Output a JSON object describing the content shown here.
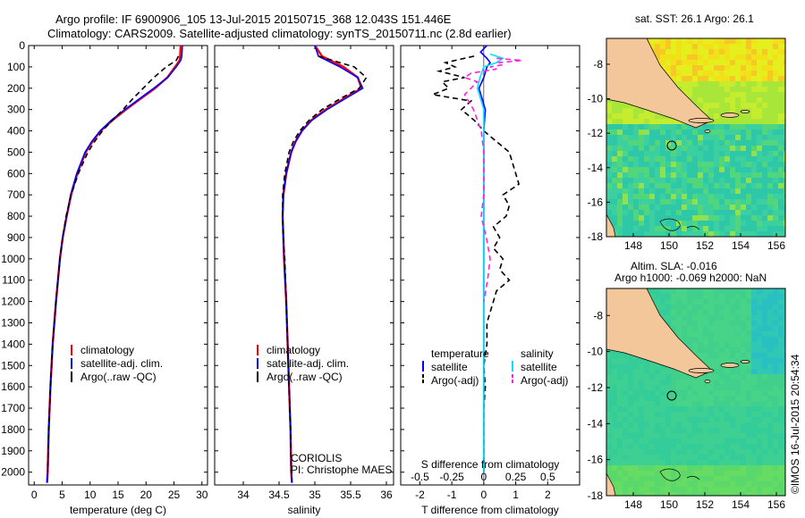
{
  "header": {
    "line1": "Argo profile: IF 6900906_105 13-Jul-2015 20150715_368 12.043S 151.446E",
    "line2": "Climatology: CARS2009. Satellite-adjusted climatology: synTS_20150711.nc (2.8d earlier)"
  },
  "colors": {
    "climatology": "#ff0000",
    "satellite": "#0000ff",
    "argo": "#000000",
    "satellite_s": "#00e5ff",
    "argo_s": "#ff22dd",
    "land": "#f4c79a"
  },
  "depth_axis": {
    "ticks": [
      0,
      100,
      200,
      300,
      400,
      500,
      600,
      700,
      800,
      900,
      1000,
      1100,
      1200,
      1300,
      1400,
      1500,
      1600,
      1700,
      1800,
      1900,
      2000
    ],
    "range": [
      0,
      2060
    ]
  },
  "chart_data": [
    {
      "type": "line",
      "xlabel": "temperature (deg C)",
      "xlim": [
        -1,
        31
      ],
      "xticks": [
        0,
        5,
        10,
        15,
        20,
        25,
        30
      ],
      "legend": [
        "climatology",
        "satellite-adj. clim.",
        "Argo(..raw -QC)"
      ],
      "depth": [
        0,
        50,
        70,
        100,
        150,
        200,
        250,
        300,
        350,
        400,
        450,
        500,
        600,
        700,
        800,
        900,
        1000,
        1200,
        1400,
        1600,
        1800,
        2000,
        2050
      ],
      "series": [
        {
          "name": "climatology",
          "values": [
            26.2,
            26.1,
            26.0,
            25.2,
            23.8,
            21.6,
            19.0,
            16.4,
            14.0,
            11.9,
            10.4,
            9.2,
            7.7,
            6.6,
            5.8,
            5.1,
            4.6,
            3.9,
            3.3,
            2.9,
            2.6,
            2.4,
            2.3
          ]
        },
        {
          "name": "satellite-adj. clim.",
          "values": [
            26.5,
            26.4,
            26.2,
            25.4,
            23.9,
            21.4,
            18.8,
            16.2,
            13.8,
            11.8,
            10.3,
            9.1,
            7.6,
            6.5,
            5.8,
            5.1,
            4.6,
            3.9,
            3.3,
            2.9,
            2.6,
            2.4,
            2.3
          ]
        },
        {
          "name": "Argo(..raw -QC)",
          "values": [
            null,
            25.8,
            25.4,
            23.6,
            21.4,
            19.5,
            17.6,
            15.9,
            14.0,
            12.2,
            10.8,
            9.6,
            7.9,
            6.6,
            5.7,
            5.1,
            4.6,
            3.9,
            3.3,
            2.9,
            2.6,
            2.4,
            null
          ]
        }
      ]
    },
    {
      "type": "line",
      "xlabel": "salinity",
      "xlim": [
        33.6,
        36.1
      ],
      "xticks": [
        34,
        34.5,
        35,
        35.5,
        36
      ],
      "legend": [
        "climatology",
        "satellite-adj. clim.",
        "Argo(..raw -QC)"
      ],
      "depth": [
        0,
        50,
        100,
        150,
        200,
        250,
        300,
        350,
        400,
        450,
        500,
        600,
        700,
        800,
        900,
        1000,
        1200,
        1400,
        1600,
        1800,
        2000,
        2050
      ],
      "series": [
        {
          "name": "climatology",
          "values": [
            35.0,
            35.1,
            35.4,
            35.6,
            35.65,
            35.4,
            35.15,
            34.95,
            34.82,
            34.73,
            34.67,
            34.6,
            34.56,
            34.55,
            34.56,
            34.57,
            34.6,
            34.62,
            34.64,
            34.66,
            34.67,
            34.68
          ]
        },
        {
          "name": "satellite-adj. clim.",
          "values": [
            35.0,
            35.05,
            35.35,
            35.6,
            35.67,
            35.42,
            35.17,
            34.96,
            34.82,
            34.73,
            34.67,
            34.6,
            34.56,
            34.55,
            34.56,
            34.57,
            34.6,
            34.62,
            34.64,
            34.66,
            34.67,
            34.68
          ]
        },
        {
          "name": "Argo(..raw -QC)",
          "values": [
            null,
            35.05,
            35.55,
            35.72,
            35.62,
            35.35,
            35.1,
            34.92,
            34.79,
            34.7,
            34.64,
            34.58,
            34.55,
            34.55,
            34.56,
            34.58,
            34.6,
            34.62,
            34.64,
            34.66,
            34.67,
            null
          ]
        }
      ]
    },
    {
      "type": "line",
      "xlabel": "T difference from climatology",
      "xlabel2": "S difference from climatology",
      "xlim": [
        -2.6,
        3.0
      ],
      "xticks": [
        -2,
        -1,
        0,
        1,
        2
      ],
      "xticks_s": [
        -0.5,
        -0.25,
        0,
        0.25,
        0.5
      ],
      "legend_t": [
        "temperature",
        "satellite",
        "Argo(-adj)"
      ],
      "legend_s": [
        "salinity",
        "satellite",
        "Argo(-adj)"
      ],
      "series": [
        {
          "name": "satellite",
          "depth": [
            0,
            30,
            60,
            80,
            100,
            150,
            200,
            300,
            400,
            600,
            800,
            1000,
            1500,
            2000
          ],
          "values": [
            0.1,
            -0.1,
            0.1,
            0.2,
            0.1,
            0.0,
            -0.15,
            0.05,
            0.0,
            0.0,
            0.0,
            0.0,
            0.0,
            0.0
          ]
        },
        {
          "name": "Argo(-adj)",
          "depth": [
            50,
            80,
            100,
            120,
            150,
            170,
            200,
            230,
            260,
            300,
            350,
            400,
            450,
            500,
            550,
            600,
            650,
            700,
            750,
            800,
            850,
            900,
            950,
            1000,
            1050,
            1100,
            1150,
            1200,
            1300,
            1400,
            1500,
            1600,
            1700,
            1800,
            1900,
            2000
          ],
          "values": [
            -0.3,
            -1.2,
            -0.9,
            -1.4,
            -0.6,
            -1.3,
            -1.1,
            -1.6,
            -0.4,
            -0.7,
            -0.3,
            0.0,
            0.4,
            0.8,
            0.9,
            1.0,
            1.1,
            0.6,
            0.8,
            0.7,
            0.3,
            0.5,
            0.3,
            0.6,
            0.5,
            0.8,
            0.4,
            0.3,
            0.1,
            0.1,
            0.0,
            0.05,
            0.0,
            0.0,
            0.0,
            0.0
          ]
        },
        {
          "name": "satellite (S)",
          "depth": [
            40,
            60,
            80,
            100,
            150,
            200,
            300,
            400,
            600,
            800,
            1000,
            1200,
            1300,
            1500,
            2000
          ],
          "values": [
            0.05,
            0.15,
            0.1,
            0.0,
            -0.03,
            -0.05,
            0.0,
            0.0,
            0.0,
            0.0,
            0.0,
            0.0,
            0.0,
            0.0,
            0.0
          ]
        },
        {
          "name": "Argo(-adj) (S)",
          "depth": [
            60,
            70,
            80,
            90,
            100,
            110,
            130,
            150,
            170,
            200,
            230,
            260,
            300,
            400,
            500,
            600,
            700,
            800,
            900,
            1000,
            1100,
            1200
          ],
          "values": [
            0.1,
            0.3,
            0.12,
            0.15,
            0.05,
            0.1,
            -0.1,
            -0.15,
            -0.05,
            -0.1,
            -0.15,
            -0.12,
            -0.08,
            -0.02,
            0.0,
            0.0,
            0.0,
            -0.02,
            0.02,
            0.05,
            0.03,
            0.0
          ]
        }
      ]
    }
  ],
  "maps": {
    "top": {
      "title": "sat. SST: 26.1 Argo: 26.1",
      "xticks": [
        148,
        150,
        152,
        154,
        156
      ],
      "yticks": [
        -8,
        -10,
        -12,
        -14,
        -16,
        -18
      ]
    },
    "bottom": {
      "title1": "Altim. SLA: -0.016",
      "title2": "Argo h1000: -0.069 h2000: NaN",
      "xticks": [
        148,
        150,
        152,
        154,
        156
      ],
      "yticks": [
        -8,
        -10,
        -12,
        -14,
        -16,
        -18
      ]
    }
  },
  "credits": {
    "line1": "CORIOLIS",
    "line2": "PI: Christophe MAES"
  },
  "watermark": "©IMOS 16-Jul-2015 20:54:34"
}
